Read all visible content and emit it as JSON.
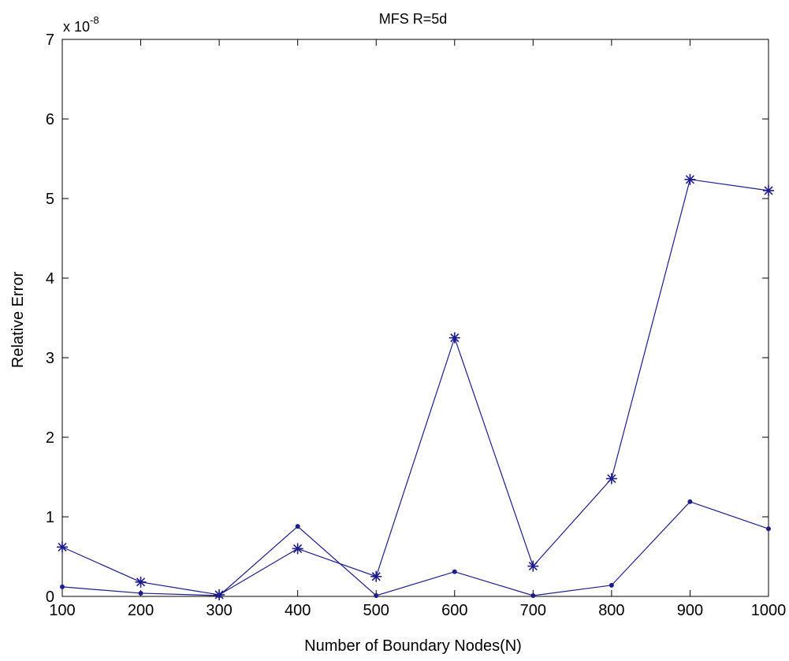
{
  "chart_data": {
    "type": "line",
    "title": "MFS R=5d",
    "xlabel": "Number of Boundary Nodes(N)",
    "ylabel": "Relative Error",
    "y_scale_label": {
      "base": "x 10",
      "exponent": "-8"
    },
    "x": [
      100,
      200,
      300,
      400,
      500,
      600,
      700,
      800,
      900,
      1000
    ],
    "xlim": [
      100,
      1000
    ],
    "ylim": [
      0,
      7
    ],
    "x_ticks": [
      "100",
      "200",
      "300",
      "400",
      "500",
      "600",
      "700",
      "800",
      "900",
      "1000"
    ],
    "y_ticks": [
      "0",
      "1",
      "2",
      "3",
      "4",
      "5",
      "6",
      "7"
    ],
    "grid": false,
    "legend": "none",
    "series": [
      {
        "marker": "asterisk",
        "color": "#1c1c8c",
        "values": [
          0.62,
          0.18,
          0.02,
          0.6,
          0.25,
          3.25,
          0.38,
          1.48,
          5.24,
          5.1
        ]
      },
      {
        "marker": "dot",
        "color": "#1c1c8c",
        "values": [
          0.12,
          0.04,
          0.01,
          0.88,
          0.01,
          0.31,
          0.01,
          0.14,
          1.19,
          0.85
        ]
      }
    ]
  }
}
